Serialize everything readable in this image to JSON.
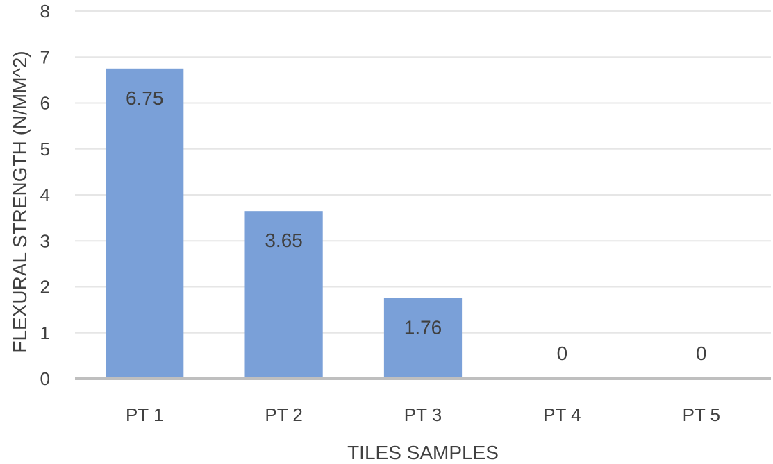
{
  "chart_data": {
    "type": "bar",
    "title": "",
    "xlabel": "TILES SAMPLES",
    "ylabel": "FLEXURAL STRENGTH (N/MM^2)",
    "categories": [
      "PT 1",
      "PT 2",
      "PT 3",
      "PT 4",
      "PT 5"
    ],
    "values": [
      6.75,
      3.65,
      1.76,
      0,
      0
    ],
    "data_labels": [
      "6.75",
      "3.65",
      "1.76",
      "0",
      "0"
    ],
    "ylim": [
      0,
      8
    ],
    "yticks": [
      "0",
      "1",
      "2",
      "3",
      "4",
      "5",
      "6",
      "7",
      "8"
    ],
    "grid": true,
    "bar_color": "#7aa0d8",
    "gridline_color": "#e6e6e6",
    "axis_color": "#bfbfbf"
  }
}
